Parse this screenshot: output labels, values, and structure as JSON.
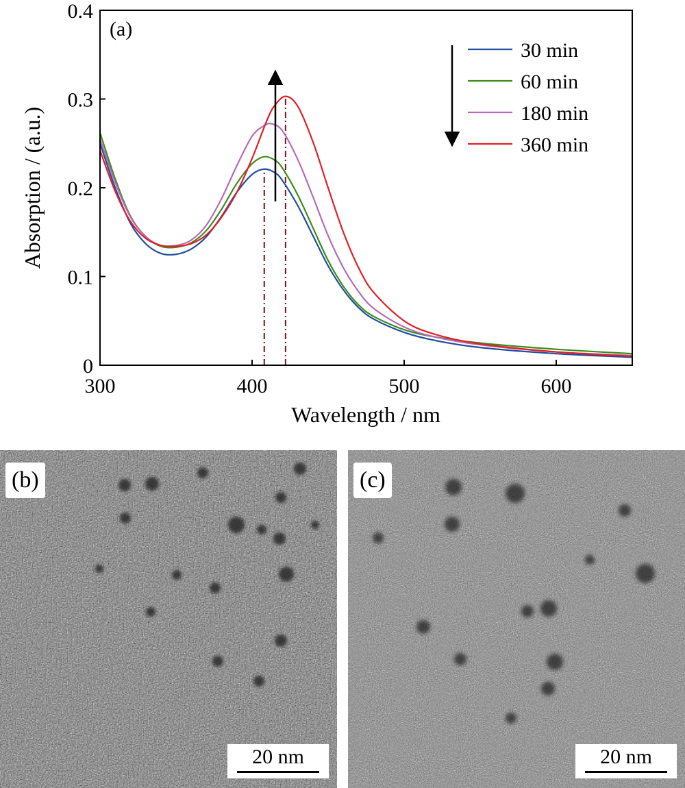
{
  "chart_data": {
    "type": "line",
    "panel_label": "(a)",
    "xlabel": "Wavelength / nm",
    "ylabel": "Absorption / (a.u.)",
    "xlim": [
      300,
      650
    ],
    "ylim": [
      0,
      0.4
    ],
    "xticks": [
      300,
      400,
      500,
      600
    ],
    "xtick_labels": [
      "300",
      "400",
      "500",
      "600"
    ],
    "yticks": [
      0,
      0.1,
      0.2,
      0.3,
      0.4
    ],
    "ytick_labels": [
      "0",
      "0.1",
      "0.2",
      "0.3",
      "0.4"
    ],
    "grid": false,
    "legend_position": "top-right",
    "series": [
      {
        "name": "30 min",
        "color": "#1f4e9c",
        "x": [
          300,
          310,
          320,
          330,
          340,
          350,
          360,
          370,
          380,
          390,
          400,
          408,
          415,
          420,
          430,
          440,
          450,
          460,
          470,
          480,
          500,
          520,
          550,
          600,
          650
        ],
        "y": [
          0.25,
          0.2,
          0.16,
          0.137,
          0.126,
          0.125,
          0.131,
          0.145,
          0.168,
          0.195,
          0.215,
          0.221,
          0.217,
          0.208,
          0.18,
          0.146,
          0.112,
          0.085,
          0.065,
          0.052,
          0.037,
          0.028,
          0.02,
          0.013,
          0.009
        ]
      },
      {
        "name": "60 min",
        "color": "#3c8c1a",
        "x": [
          300,
          310,
          320,
          330,
          340,
          350,
          360,
          370,
          380,
          390,
          400,
          408,
          415,
          420,
          430,
          440,
          450,
          460,
          470,
          480,
          500,
          520,
          550,
          600,
          650
        ],
        "y": [
          0.262,
          0.21,
          0.168,
          0.145,
          0.134,
          0.133,
          0.138,
          0.152,
          0.176,
          0.205,
          0.227,
          0.235,
          0.231,
          0.222,
          0.192,
          0.155,
          0.118,
          0.089,
          0.068,
          0.055,
          0.04,
          0.032,
          0.025,
          0.018,
          0.013
        ]
      },
      {
        "name": "180 min",
        "color": "#b46ab8",
        "x": [
          300,
          310,
          320,
          330,
          340,
          350,
          360,
          370,
          380,
          390,
          400,
          408,
          413,
          420,
          430,
          440,
          450,
          460,
          470,
          480,
          500,
          520,
          550,
          600,
          650
        ],
        "y": [
          0.255,
          0.206,
          0.167,
          0.145,
          0.135,
          0.135,
          0.141,
          0.158,
          0.188,
          0.225,
          0.258,
          0.27,
          0.272,
          0.264,
          0.232,
          0.19,
          0.146,
          0.11,
          0.083,
          0.064,
          0.043,
          0.032,
          0.023,
          0.015,
          0.011
        ]
      },
      {
        "name": "360 min",
        "color": "#e01f26",
        "x": [
          300,
          310,
          320,
          330,
          340,
          350,
          360,
          370,
          380,
          390,
          400,
          410,
          415,
          422,
          430,
          440,
          450,
          460,
          470,
          480,
          500,
          520,
          550,
          600,
          650
        ],
        "y": [
          0.242,
          0.196,
          0.162,
          0.143,
          0.135,
          0.134,
          0.137,
          0.147,
          0.167,
          0.195,
          0.233,
          0.277,
          0.293,
          0.303,
          0.292,
          0.252,
          0.2,
          0.15,
          0.11,
          0.082,
          0.05,
          0.035,
          0.024,
          0.015,
          0.01
        ]
      }
    ],
    "peak_markers_nm": [
      408,
      422
    ]
  },
  "panels": {
    "b": {
      "label": "(b)",
      "scale_bar": "20 nm"
    },
    "c": {
      "label": "(c)",
      "scale_bar": "20 nm"
    }
  }
}
